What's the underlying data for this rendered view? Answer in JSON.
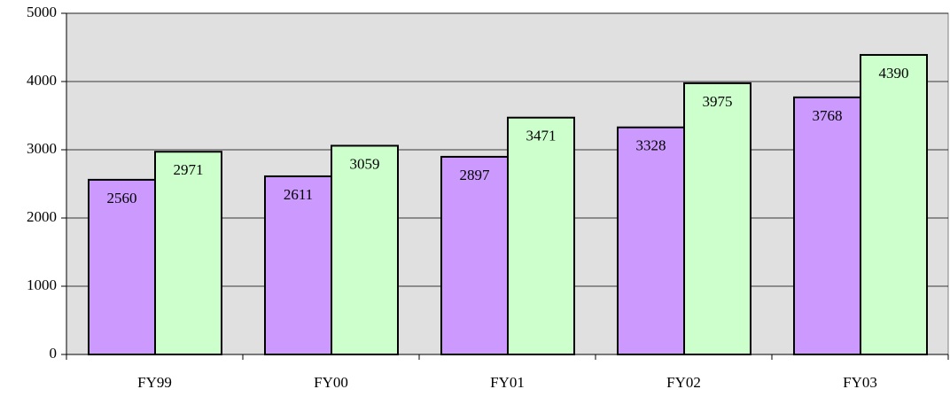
{
  "chart_data": {
    "type": "bar",
    "categories": [
      "FY99",
      "FY00",
      "FY01",
      "FY02",
      "FY03"
    ],
    "series": [
      {
        "color": "#cc99ff",
        "values": [
          2560,
          2611,
          2897,
          3328,
          3768
        ]
      },
      {
        "color": "#ccffcc",
        "values": [
          2971,
          3059,
          3471,
          3975,
          4390
        ]
      }
    ],
    "ylim": [
      0,
      5000
    ],
    "yticks": [
      0,
      1000,
      2000,
      3000,
      4000,
      5000
    ],
    "grid": true,
    "data_labels": true
  }
}
